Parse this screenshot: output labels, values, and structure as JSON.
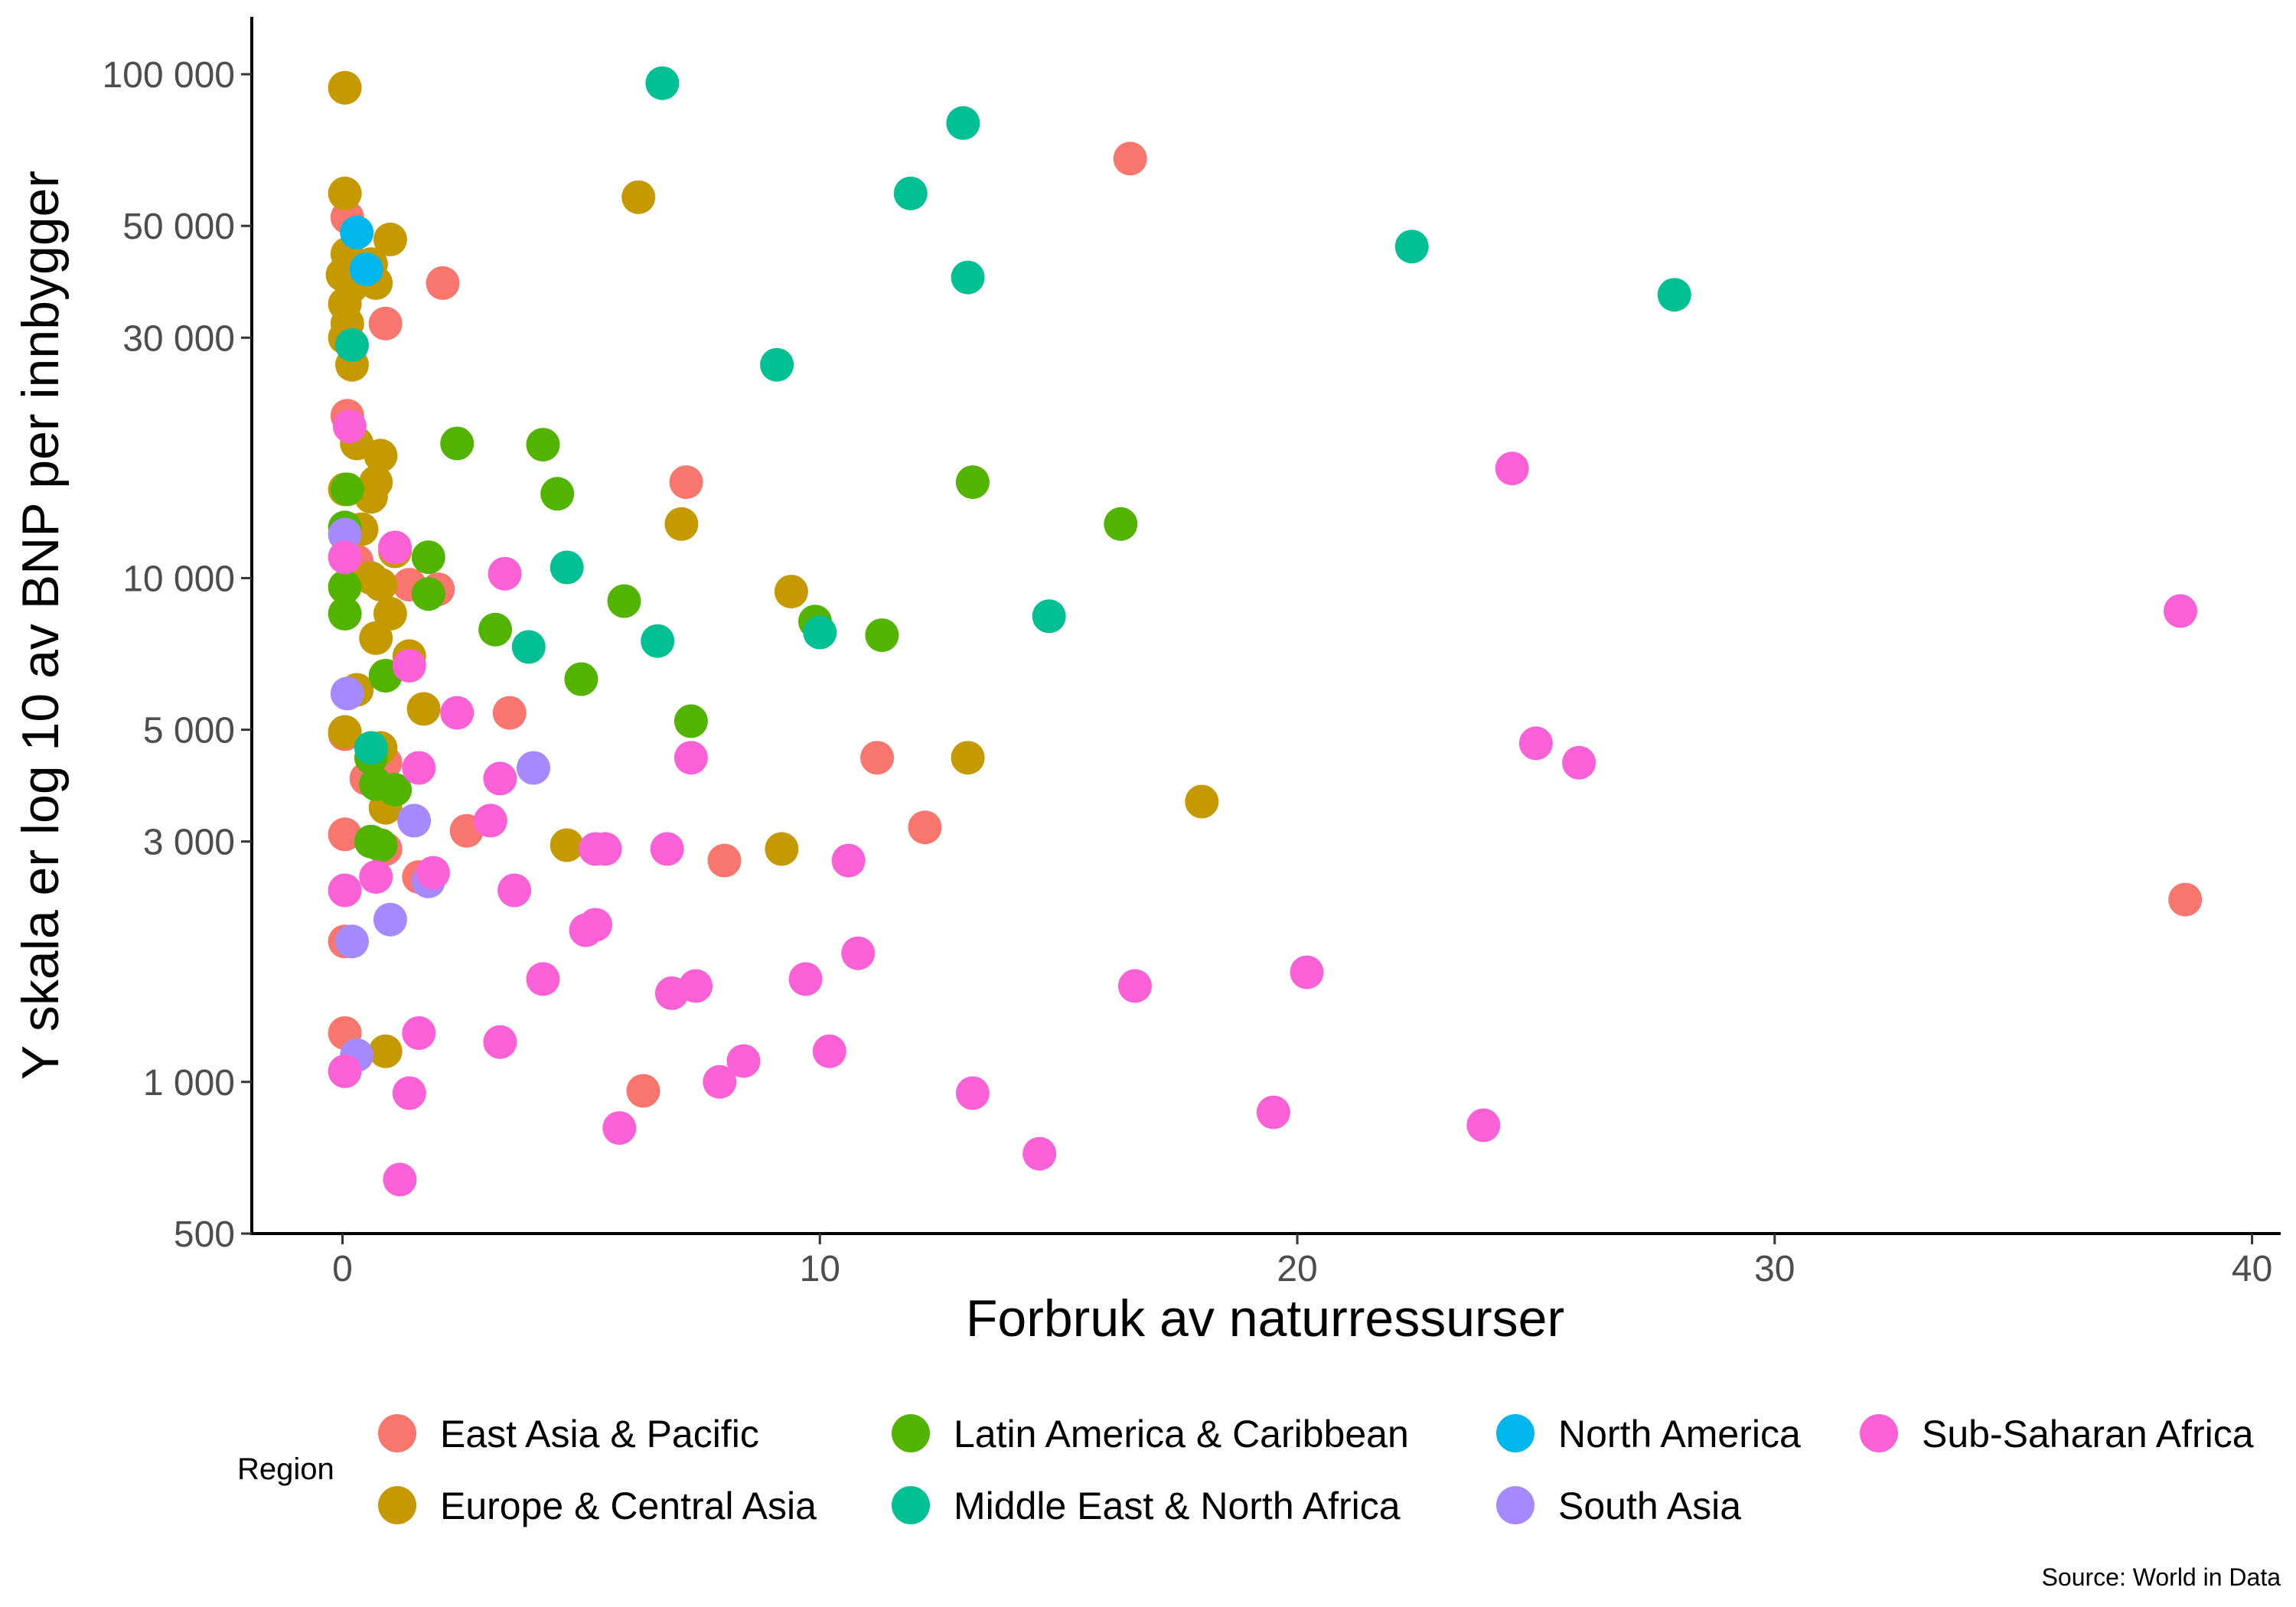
{
  "chart_data": {
    "type": "scatter",
    "title": "",
    "xlabel": "Forbruk av naturressurser",
    "ylabel": "Y skala er log 10 av BNP per innbygger",
    "caption": "Source: World in Data",
    "y_scale": "log10",
    "xlim": [
      -1.9,
      40.6
    ],
    "ylim": [
      500,
      130000
    ],
    "x_ticks": [
      {
        "value": 0,
        "label": "0"
      },
      {
        "value": 10,
        "label": "10"
      },
      {
        "value": 20,
        "label": "20"
      },
      {
        "value": 30,
        "label": "30"
      },
      {
        "value": 40,
        "label": "40"
      }
    ],
    "y_ticks": [
      {
        "value": 500,
        "label": "500"
      },
      {
        "value": 1000,
        "label": "1 000"
      },
      {
        "value": 3000,
        "label": "3 000"
      },
      {
        "value": 5000,
        "label": "5 000"
      },
      {
        "value": 10000,
        "label": "10 000"
      },
      {
        "value": 30000,
        "label": "30 000"
      },
      {
        "value": 50000,
        "label": "50 000"
      },
      {
        "value": 100000,
        "label": "100 000"
      }
    ],
    "grid": false,
    "legend": {
      "title": "Region",
      "position": "bottom"
    },
    "series": [
      {
        "name": "East Asia & Pacific",
        "color": "#F8766D",
        "points": [
          [
            16.5,
            68000
          ],
          [
            2.1,
            38500
          ],
          [
            0.9,
            32000
          ],
          [
            0.1,
            52000
          ],
          [
            7.2,
            15500
          ],
          [
            0.1,
            21000
          ],
          [
            0.3,
            10800
          ],
          [
            1.4,
            9700
          ],
          [
            2.0,
            9500
          ],
          [
            3.5,
            5400
          ],
          [
            11.2,
            4400
          ],
          [
            0.05,
            4900
          ],
          [
            0.9,
            4300
          ],
          [
            0.5,
            4000
          ],
          [
            12.2,
            3200
          ],
          [
            2.6,
            3150
          ],
          [
            0.05,
            3100
          ],
          [
            0.9,
            2900
          ],
          [
            8.0,
            2750
          ],
          [
            1.6,
            2550
          ],
          [
            38.6,
            2300
          ],
          [
            0.05,
            1900
          ],
          [
            0.05,
            1250
          ],
          [
            6.3,
            960
          ]
        ]
      },
      {
        "name": "Europe & Central Asia",
        "color": "#C49A00",
        "points": [
          [
            0.05,
            94000
          ],
          [
            6.2,
            57000
          ],
          [
            0.05,
            58000
          ],
          [
            1.0,
            47000
          ],
          [
            0.1,
            44000
          ],
          [
            0.6,
            42000
          ],
          [
            0.0,
            40000
          ],
          [
            0.2,
            38000
          ],
          [
            0.7,
            38500
          ],
          [
            0.05,
            35000
          ],
          [
            0.1,
            32000
          ],
          [
            0.05,
            30000
          ],
          [
            0.2,
            26500
          ],
          [
            0.3,
            18500
          ],
          [
            0.8,
            17500
          ],
          [
            0.7,
            15500
          ],
          [
            0.05,
            15000
          ],
          [
            0.6,
            14500
          ],
          [
            0.4,
            12500
          ],
          [
            7.1,
            12800
          ],
          [
            1.1,
            11300
          ],
          [
            0.6,
            10000
          ],
          [
            0.8,
            9700
          ],
          [
            9.4,
            9400
          ],
          [
            1.0,
            8500
          ],
          [
            0.7,
            7600
          ],
          [
            1.4,
            7000
          ],
          [
            0.3,
            6000
          ],
          [
            1.7,
            5500
          ],
          [
            13.1,
            4400
          ],
          [
            0.05,
            4950
          ],
          [
            0.8,
            4600
          ],
          [
            18.0,
            3600
          ],
          [
            0.9,
            3500
          ],
          [
            4.7,
            2950
          ],
          [
            9.2,
            2900
          ],
          [
            0.9,
            1150
          ]
        ]
      },
      {
        "name": "Latin America & Caribbean",
        "color": "#53B400",
        "points": [
          [
            2.4,
            18500
          ],
          [
            4.2,
            18400
          ],
          [
            4.5,
            14700
          ],
          [
            13.2,
            15500
          ],
          [
            16.3,
            12800
          ],
          [
            0.1,
            15000
          ],
          [
            0.05,
            12600
          ],
          [
            1.8,
            11000
          ],
          [
            1.8,
            9300
          ],
          [
            0.05,
            9600
          ],
          [
            0.05,
            8500
          ],
          [
            5.9,
            9000
          ],
          [
            3.2,
            7900
          ],
          [
            9.9,
            8200
          ],
          [
            11.3,
            7700
          ],
          [
            0.9,
            6400
          ],
          [
            5.0,
            6300
          ],
          [
            7.3,
            5200
          ],
          [
            0.6,
            4400
          ],
          [
            0.7,
            3900
          ],
          [
            1.1,
            3800
          ],
          [
            0.6,
            3000
          ],
          [
            0.8,
            2950
          ]
        ]
      },
      {
        "name": "Middle East & North Africa",
        "color": "#00C094",
        "points": [
          [
            6.7,
            96000
          ],
          [
            13.0,
            80000
          ],
          [
            11.9,
            58000
          ],
          [
            22.4,
            45500
          ],
          [
            13.1,
            39500
          ],
          [
            27.9,
            36500
          ],
          [
            9.1,
            26500
          ],
          [
            0.2,
            29000
          ],
          [
            4.7,
            10500
          ],
          [
            14.8,
            8400
          ],
          [
            6.6,
            7500
          ],
          [
            3.9,
            7300
          ],
          [
            10.0,
            7800
          ],
          [
            0.6,
            4600
          ]
        ]
      },
      {
        "name": "North America",
        "color": "#00B6EB",
        "points": [
          [
            0.3,
            48500
          ],
          [
            0.5,
            41000
          ]
        ]
      },
      {
        "name": "South Asia",
        "color": "#A58AFF",
        "points": [
          [
            0.1,
            5900
          ],
          [
            4.0,
            4200
          ],
          [
            1.5,
            3300
          ],
          [
            1.8,
            2500
          ],
          [
            1.0,
            2100
          ],
          [
            0.2,
            1900
          ],
          [
            0.3,
            1130
          ],
          [
            0.05,
            12200
          ]
        ]
      },
      {
        "name": "Sub-Saharan Africa",
        "color": "#FB61D7",
        "points": [
          [
            0.15,
            20000
          ],
          [
            24.5,
            16500
          ],
          [
            0.05,
            11000
          ],
          [
            1.1,
            11500
          ],
          [
            3.4,
            10200
          ],
          [
            38.5,
            8600
          ],
          [
            1.4,
            6700
          ],
          [
            2.4,
            5400
          ],
          [
            25.0,
            4700
          ],
          [
            25.9,
            4300
          ],
          [
            7.3,
            4400
          ],
          [
            1.6,
            4200
          ],
          [
            3.3,
            4000
          ],
          [
            3.1,
            3300
          ],
          [
            5.3,
            2900
          ],
          [
            5.5,
            2900
          ],
          [
            6.8,
            2900
          ],
          [
            10.6,
            2750
          ],
          [
            1.9,
            2600
          ],
          [
            0.7,
            2550
          ],
          [
            0.05,
            2400
          ],
          [
            3.6,
            2400
          ],
          [
            5.1,
            2000
          ],
          [
            5.3,
            2050
          ],
          [
            10.8,
            1800
          ],
          [
            4.2,
            1600
          ],
          [
            9.7,
            1600
          ],
          [
            7.4,
            1550
          ],
          [
            6.9,
            1500
          ],
          [
            16.6,
            1550
          ],
          [
            20.2,
            1650
          ],
          [
            1.6,
            1250
          ],
          [
            3.3,
            1200
          ],
          [
            10.2,
            1150
          ],
          [
            8.4,
            1100
          ],
          [
            0.05,
            1050
          ],
          [
            7.9,
            1000
          ],
          [
            13.2,
            950
          ],
          [
            1.4,
            950
          ],
          [
            19.5,
            870
          ],
          [
            23.9,
            820
          ],
          [
            5.8,
            810
          ],
          [
            14.6,
            720
          ],
          [
            1.2,
            640
          ]
        ]
      }
    ]
  }
}
